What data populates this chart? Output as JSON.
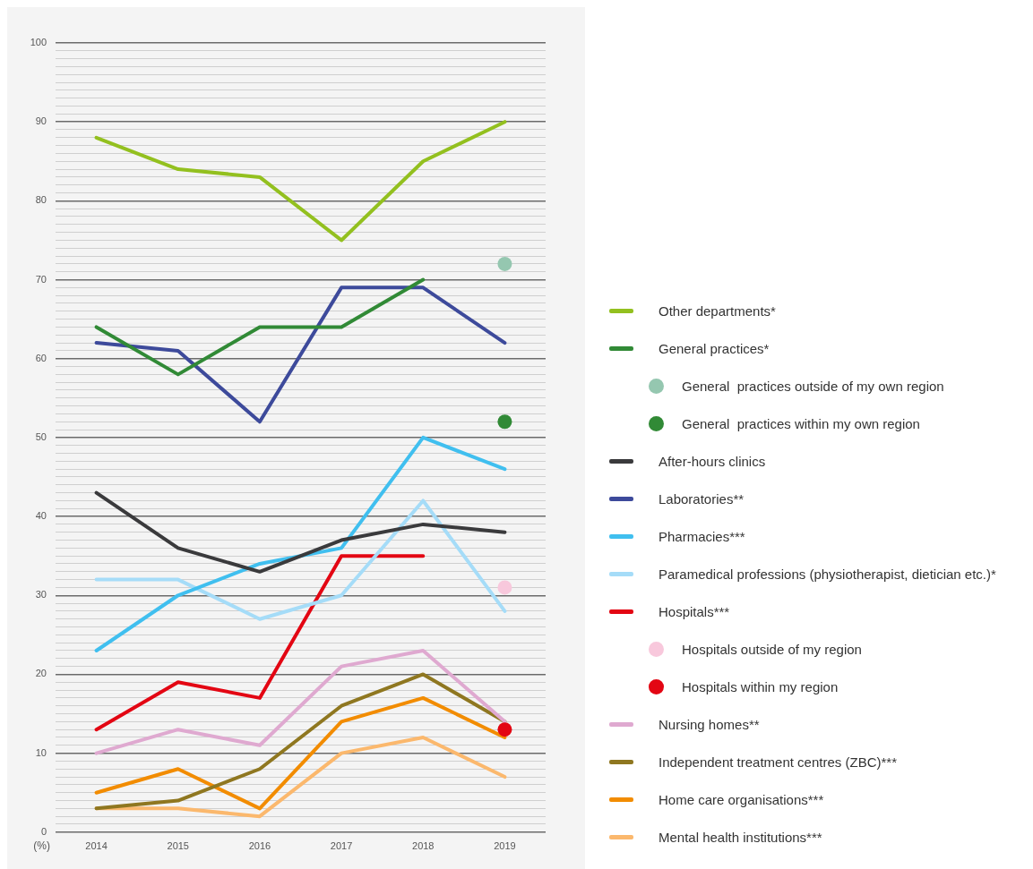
{
  "chart_data": {
    "type": "line",
    "ylabel": "(%)",
    "categories": [
      "2014",
      "2015",
      "2016",
      "2017",
      "2018",
      "2019"
    ],
    "ylim": [
      0,
      100
    ],
    "yticks": [
      0,
      {
        "value": 1,
        "label": null
      },
      {
        "value": 2,
        "label": null
      },
      {
        "value": 3,
        "label": null
      },
      {
        "value": 4,
        "label": null
      },
      {
        "value": 5,
        "label": null
      },
      {
        "value": 6,
        "label": null
      },
      {
        "value": 7,
        "label": null
      },
      {
        "value": 8,
        "label": null
      },
      {
        "value": 9,
        "label": null
      },
      10,
      {
        "value": 11,
        "label": null
      },
      {
        "value": 12,
        "label": null
      },
      {
        "value": 13,
        "label": null
      },
      {
        "value": 14,
        "label": null
      },
      {
        "value": 15,
        "label": null
      },
      {
        "value": 16,
        "label": null
      },
      {
        "value": 17,
        "label": null
      },
      {
        "value": 18,
        "label": null
      },
      {
        "value": 19,
        "label": null
      },
      20,
      {
        "value": 21,
        "label": null
      },
      {
        "value": 22,
        "label": null
      },
      {
        "value": 23,
        "label": null
      },
      {
        "value": 24,
        "label": null
      },
      {
        "value": 25,
        "label": null
      },
      {
        "value": 26,
        "label": null
      },
      {
        "value": 27,
        "label": null
      },
      {
        "value": 28,
        "label": null
      },
      {
        "value": 29,
        "label": null
      },
      30,
      {
        "value": 31,
        "label": null
      },
      {
        "value": 32,
        "label": null
      },
      {
        "value": 33,
        "label": null
      },
      {
        "value": 34,
        "label": null
      },
      {
        "value": 35,
        "label": null
      },
      {
        "value": 36,
        "label": null
      },
      {
        "value": 37,
        "label": null
      },
      {
        "value": 38,
        "label": null
      },
      {
        "value": 39,
        "label": null
      },
      40,
      {
        "value": 41,
        "label": null
      },
      {
        "value": 42,
        "label": null
      },
      {
        "value": 43,
        "label": null
      },
      {
        "value": 44,
        "label": null
      },
      {
        "value": 45,
        "label": null
      },
      {
        "value": 46,
        "label": null
      },
      {
        "value": 47,
        "label": null
      },
      {
        "value": 48,
        "label": null
      },
      {
        "value": 49,
        "label": null
      },
      50,
      {
        "value": 51,
        "label": null
      },
      {
        "value": 52,
        "label": null
      },
      {
        "value": 53,
        "label": null
      },
      {
        "value": 54,
        "label": null
      },
      {
        "value": 55,
        "label": null
      },
      {
        "value": 56,
        "label": null
      },
      {
        "value": 57,
        "label": null
      },
      {
        "value": 58,
        "label": null
      },
      {
        "value": 59,
        "label": null
      },
      60,
      {
        "value": 61,
        "label": null
      },
      {
        "value": 62,
        "label": null
      },
      {
        "value": 63,
        "label": null
      },
      {
        "value": 64,
        "label": null
      },
      {
        "value": 65,
        "label": null
      },
      {
        "value": 66,
        "label": null
      },
      {
        "value": 67,
        "label": null
      },
      {
        "value": 68,
        "label": null
      },
      {
        "value": 69,
        "label": null
      },
      70,
      {
        "value": 71,
        "label": null
      },
      {
        "value": 72,
        "label": null
      },
      {
        "value": 73,
        "label": null
      },
      {
        "value": 74,
        "label": null
      },
      {
        "value": 75,
        "label": null
      },
      {
        "value": 76,
        "label": null
      },
      {
        "value": 77,
        "label": null
      },
      {
        "value": 78,
        "label": null
      },
      {
        "value": 79,
        "label": null
      },
      80,
      {
        "value": 81,
        "label": null
      },
      {
        "value": 82,
        "label": null
      },
      {
        "value": 83,
        "label": null
      },
      {
        "value": 84,
        "label": null
      },
      {
        "value": 85,
        "label": null
      },
      {
        "value": 86,
        "label": null
      },
      {
        "value": 87,
        "label": null
      },
      {
        "value": 88,
        "label": null
      },
      {
        "value": 89,
        "label": null
      },
      90,
      {
        "value": 91,
        "label": null
      },
      {
        "value": 92,
        "label": null
      },
      {
        "value": 93,
        "label": null
      },
      {
        "value": 94,
        "label": null
      },
      {
        "value": 95,
        "label": null
      },
      {
        "value": 96,
        "label": null
      },
      {
        "value": 97,
        "label": null
      },
      {
        "value": 98,
        "label": null
      },
      {
        "value": 99,
        "label": null
      },
      100
    ],
    "grid": "y",
    "legend": "right",
    "marker": "none",
    "series": [
      {
        "name": "Other departments*",
        "color": "#93c01f",
        "values": [
          88,
          84,
          83,
          75,
          85,
          90
        ]
      },
      {
        "name": "General practices*",
        "color": "#318a36",
        "values": [
          64,
          58,
          64,
          64,
          70,
          null
        ]
      },
      {
        "name": "General  practices outside of my own region",
        "color": "#95c7b0",
        "type": "scatter",
        "marker": "circle",
        "values": [
          null,
          null,
          null,
          null,
          null,
          72
        ]
      },
      {
        "name": "General  practices within my own region",
        "color": "#318a36",
        "type": "scatter",
        "marker": "circle",
        "values": [
          null,
          null,
          null,
          null,
          null,
          52
        ]
      },
      {
        "name": "After-hours clinics",
        "color": "#3a3a3c",
        "values": [
          43,
          36,
          33,
          37,
          39,
          38
        ]
      },
      {
        "name": "Laboratories**",
        "color": "#3d4a9b",
        "values": [
          62,
          61,
          52,
          69,
          69,
          62
        ]
      },
      {
        "name": "Pharmacies***",
        "color": "#40bfef",
        "values": [
          23,
          30,
          34,
          36,
          50,
          46
        ]
      },
      {
        "name": "Paramedical professions (physiotherapist, dietician etc.)*",
        "color": "#a5dcf8",
        "values": [
          32,
          32,
          27,
          30,
          42,
          28
        ]
      },
      {
        "name": "Hospitals***",
        "color": "#e30613",
        "values": [
          13,
          19,
          17,
          35,
          35,
          null
        ]
      },
      {
        "name": "Hospitals outside of my region",
        "color": "#f8c8dc",
        "type": "scatter",
        "marker": "circle",
        "values": [
          null,
          null,
          null,
          null,
          null,
          31
        ]
      },
      {
        "name": "Hospitals within my region",
        "color": "#e30613",
        "type": "scatter",
        "marker": "circle",
        "values": [
          null,
          null,
          null,
          null,
          null,
          13
        ]
      },
      {
        "name": "Nursing homes**",
        "color": "#dfa9d0",
        "values": [
          10,
          13,
          11,
          21,
          23,
          14
        ]
      },
      {
        "name": "Independent treatment centres (ZBC)***",
        "color": "#8f7720",
        "values": [
          3,
          4,
          8,
          16,
          20,
          14
        ]
      },
      {
        "name": "Home care organisations***",
        "color": "#f28c00",
        "values": [
          5,
          8,
          3,
          14,
          17,
          12
        ]
      },
      {
        "name": "Mental health institutions***",
        "color": "#fbb86d",
        "values": [
          3,
          3,
          2,
          10,
          12,
          7
        ]
      }
    ]
  }
}
